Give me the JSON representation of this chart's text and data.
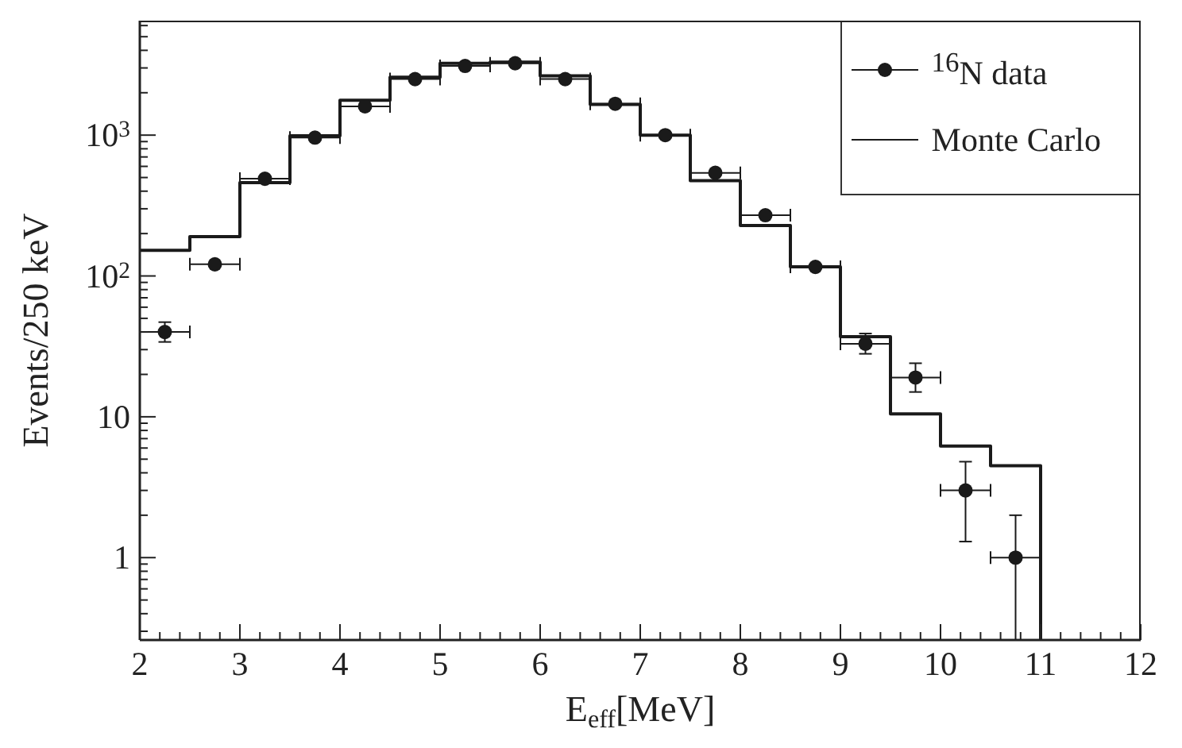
{
  "chart_data": {
    "type": "scatter",
    "xlabel": "E$_{eff}$[MeV]",
    "ylabel": "Events/250 keV",
    "log": "y",
    "marker": "circle",
    "legend": "top right",
    "xlim": [
      2,
      12
    ],
    "ylim": [
      0.26,
      6500
    ],
    "xticks": [
      2,
      {
        "value": 2.2,
        "label": null
      },
      {
        "value": 2.4,
        "label": null
      },
      {
        "value": 2.6,
        "label": null
      },
      {
        "value": 2.8,
        "label": null
      },
      3,
      {
        "value": 3.2,
        "label": null
      },
      {
        "value": 3.4,
        "label": null
      },
      {
        "value": 3.6,
        "label": null
      },
      {
        "value": 3.8,
        "label": null
      },
      4,
      {
        "value": 4.2,
        "label": null
      },
      {
        "value": 4.4,
        "label": null
      },
      {
        "value": 4.6,
        "label": null
      },
      {
        "value": 4.8,
        "label": null
      },
      5,
      {
        "value": 5.2,
        "label": null
      },
      {
        "value": 5.4,
        "label": null
      },
      {
        "value": 5.6,
        "label": null
      },
      {
        "value": 5.8,
        "label": null
      },
      6,
      {
        "value": 6.2,
        "label": null
      },
      {
        "value": 6.4,
        "label": null
      },
      {
        "value": 6.6,
        "label": null
      },
      {
        "value": 6.8,
        "label": null
      },
      7,
      {
        "value": 7.2,
        "label": null
      },
      {
        "value": 7.4,
        "label": null
      },
      {
        "value": 7.6,
        "label": null
      },
      {
        "value": 7.8,
        "label": null
      },
      8,
      {
        "value": 8.2,
        "label": null
      },
      {
        "value": 8.4,
        "label": null
      },
      {
        "value": 8.6,
        "label": null
      },
      {
        "value": 8.8,
        "label": null
      },
      9,
      {
        "value": 9.2,
        "label": null
      },
      {
        "value": 9.4,
        "label": null
      },
      {
        "value": 9.6,
        "label": null
      },
      {
        "value": 9.8,
        "label": null
      },
      10,
      {
        "value": 10.2,
        "label": null
      },
      {
        "value": 10.4,
        "label": null
      },
      {
        "value": 10.6,
        "label": null
      },
      {
        "value": 10.8,
        "label": null
      },
      11,
      {
        "value": 11.2,
        "label": null
      },
      {
        "value": 11.4,
        "label": null
      },
      {
        "value": 11.6,
        "label": null
      },
      {
        "value": 11.8,
        "label": null
      },
      12
    ],
    "yticks": [
      {
        "value": 0.3,
        "label": null
      },
      {
        "value": 0.4,
        "label": null
      },
      {
        "value": 0.5,
        "label": null
      },
      {
        "value": 0.6,
        "label": null
      },
      {
        "value": 0.7,
        "label": null
      },
      {
        "value": 0.8,
        "label": null
      },
      {
        "value": 0.9,
        "label": null
      },
      1,
      {
        "value": 2,
        "label": null
      },
      {
        "value": 3,
        "label": null
      },
      {
        "value": 4,
        "label": null
      },
      {
        "value": 5,
        "label": null
      },
      {
        "value": 6,
        "label": null
      },
      {
        "value": 7,
        "label": null
      },
      {
        "value": 8,
        "label": null
      },
      {
        "value": 9,
        "label": null
      },
      10,
      {
        "value": 20,
        "label": null
      },
      {
        "value": 30,
        "label": null
      },
      {
        "value": 40,
        "label": null
      },
      {
        "value": 50,
        "label": null
      },
      {
        "value": 60,
        "label": null
      },
      {
        "value": 70,
        "label": null
      },
      {
        "value": 80,
        "label": null
      },
      {
        "value": 90,
        "label": null
      },
      {
        "value": 100,
        "label": "10$^{2}$"
      },
      {
        "value": 200,
        "label": null
      },
      {
        "value": 300,
        "label": null
      },
      {
        "value": 400,
        "label": null
      },
      {
        "value": 500,
        "label": null
      },
      {
        "value": 600,
        "label": null
      },
      {
        "value": 700,
        "label": null
      },
      {
        "value": 800,
        "label": null
      },
      {
        "value": 900,
        "label": null
      },
      {
        "value": 1000,
        "label": "10$^{3}$"
      },
      {
        "value": 2000,
        "label": null
      },
      {
        "value": 3000,
        "label": null
      },
      {
        "value": 4000,
        "label": null
      },
      {
        "value": 5000,
        "label": null
      },
      {
        "value": 6000,
        "label": null
      }
    ],
    "series": [
      {
        "name": "$^{16}$N data",
        "color": "#1a1a1a",
        "x": [
          2.25,
          2.75,
          3.25,
          3.75,
          4.25,
          4.75,
          5.25,
          5.75,
          6.25,
          6.75,
          7.25,
          7.75,
          8.25,
          8.75,
          9.25,
          9.75,
          10.25,
          10.75
        ],
        "values": [
          40,
          121,
          490,
          960,
          1600,
          2500,
          3100,
          3240,
          2500,
          1670,
          1000,
          540,
          270,
          116,
          33,
          19,
          3,
          1
        ],
        "errors": [
          [
            34,
            47
          ],
          null,
          null,
          null,
          null,
          null,
          null,
          null,
          null,
          null,
          null,
          null,
          null,
          null,
          [
            28,
            39
          ],
          [
            15,
            24
          ],
          [
            1.3,
            4.8
          ],
          [
            0.26,
            2
          ]
        ],
        "xerrors": [
          0.25,
          0.25,
          0.25,
          0.25,
          0.25,
          0.25,
          0.25,
          0.25,
          0.25,
          0.25,
          0.25,
          0.25,
          0.25,
          0.25,
          0.25,
          0.25,
          0.25,
          0.25
        ]
      },
      {
        "name": "Monte Carlo",
        "type": "histogram",
        "color": "#1a1a1a",
        "bins": [
          2,
          2.5,
          3,
          3.5,
          4,
          4.5,
          5,
          5.5,
          6,
          6.5,
          7,
          7.5,
          8,
          8.5,
          9,
          9.5,
          10,
          10.5,
          11
        ],
        "values": [
          152,
          190,
          460,
          990,
          1770,
          2580,
          3240,
          3300,
          2640,
          1650,
          1000,
          475,
          228,
          116,
          37,
          10.5,
          6.2,
          4.5
        ]
      }
    ]
  }
}
